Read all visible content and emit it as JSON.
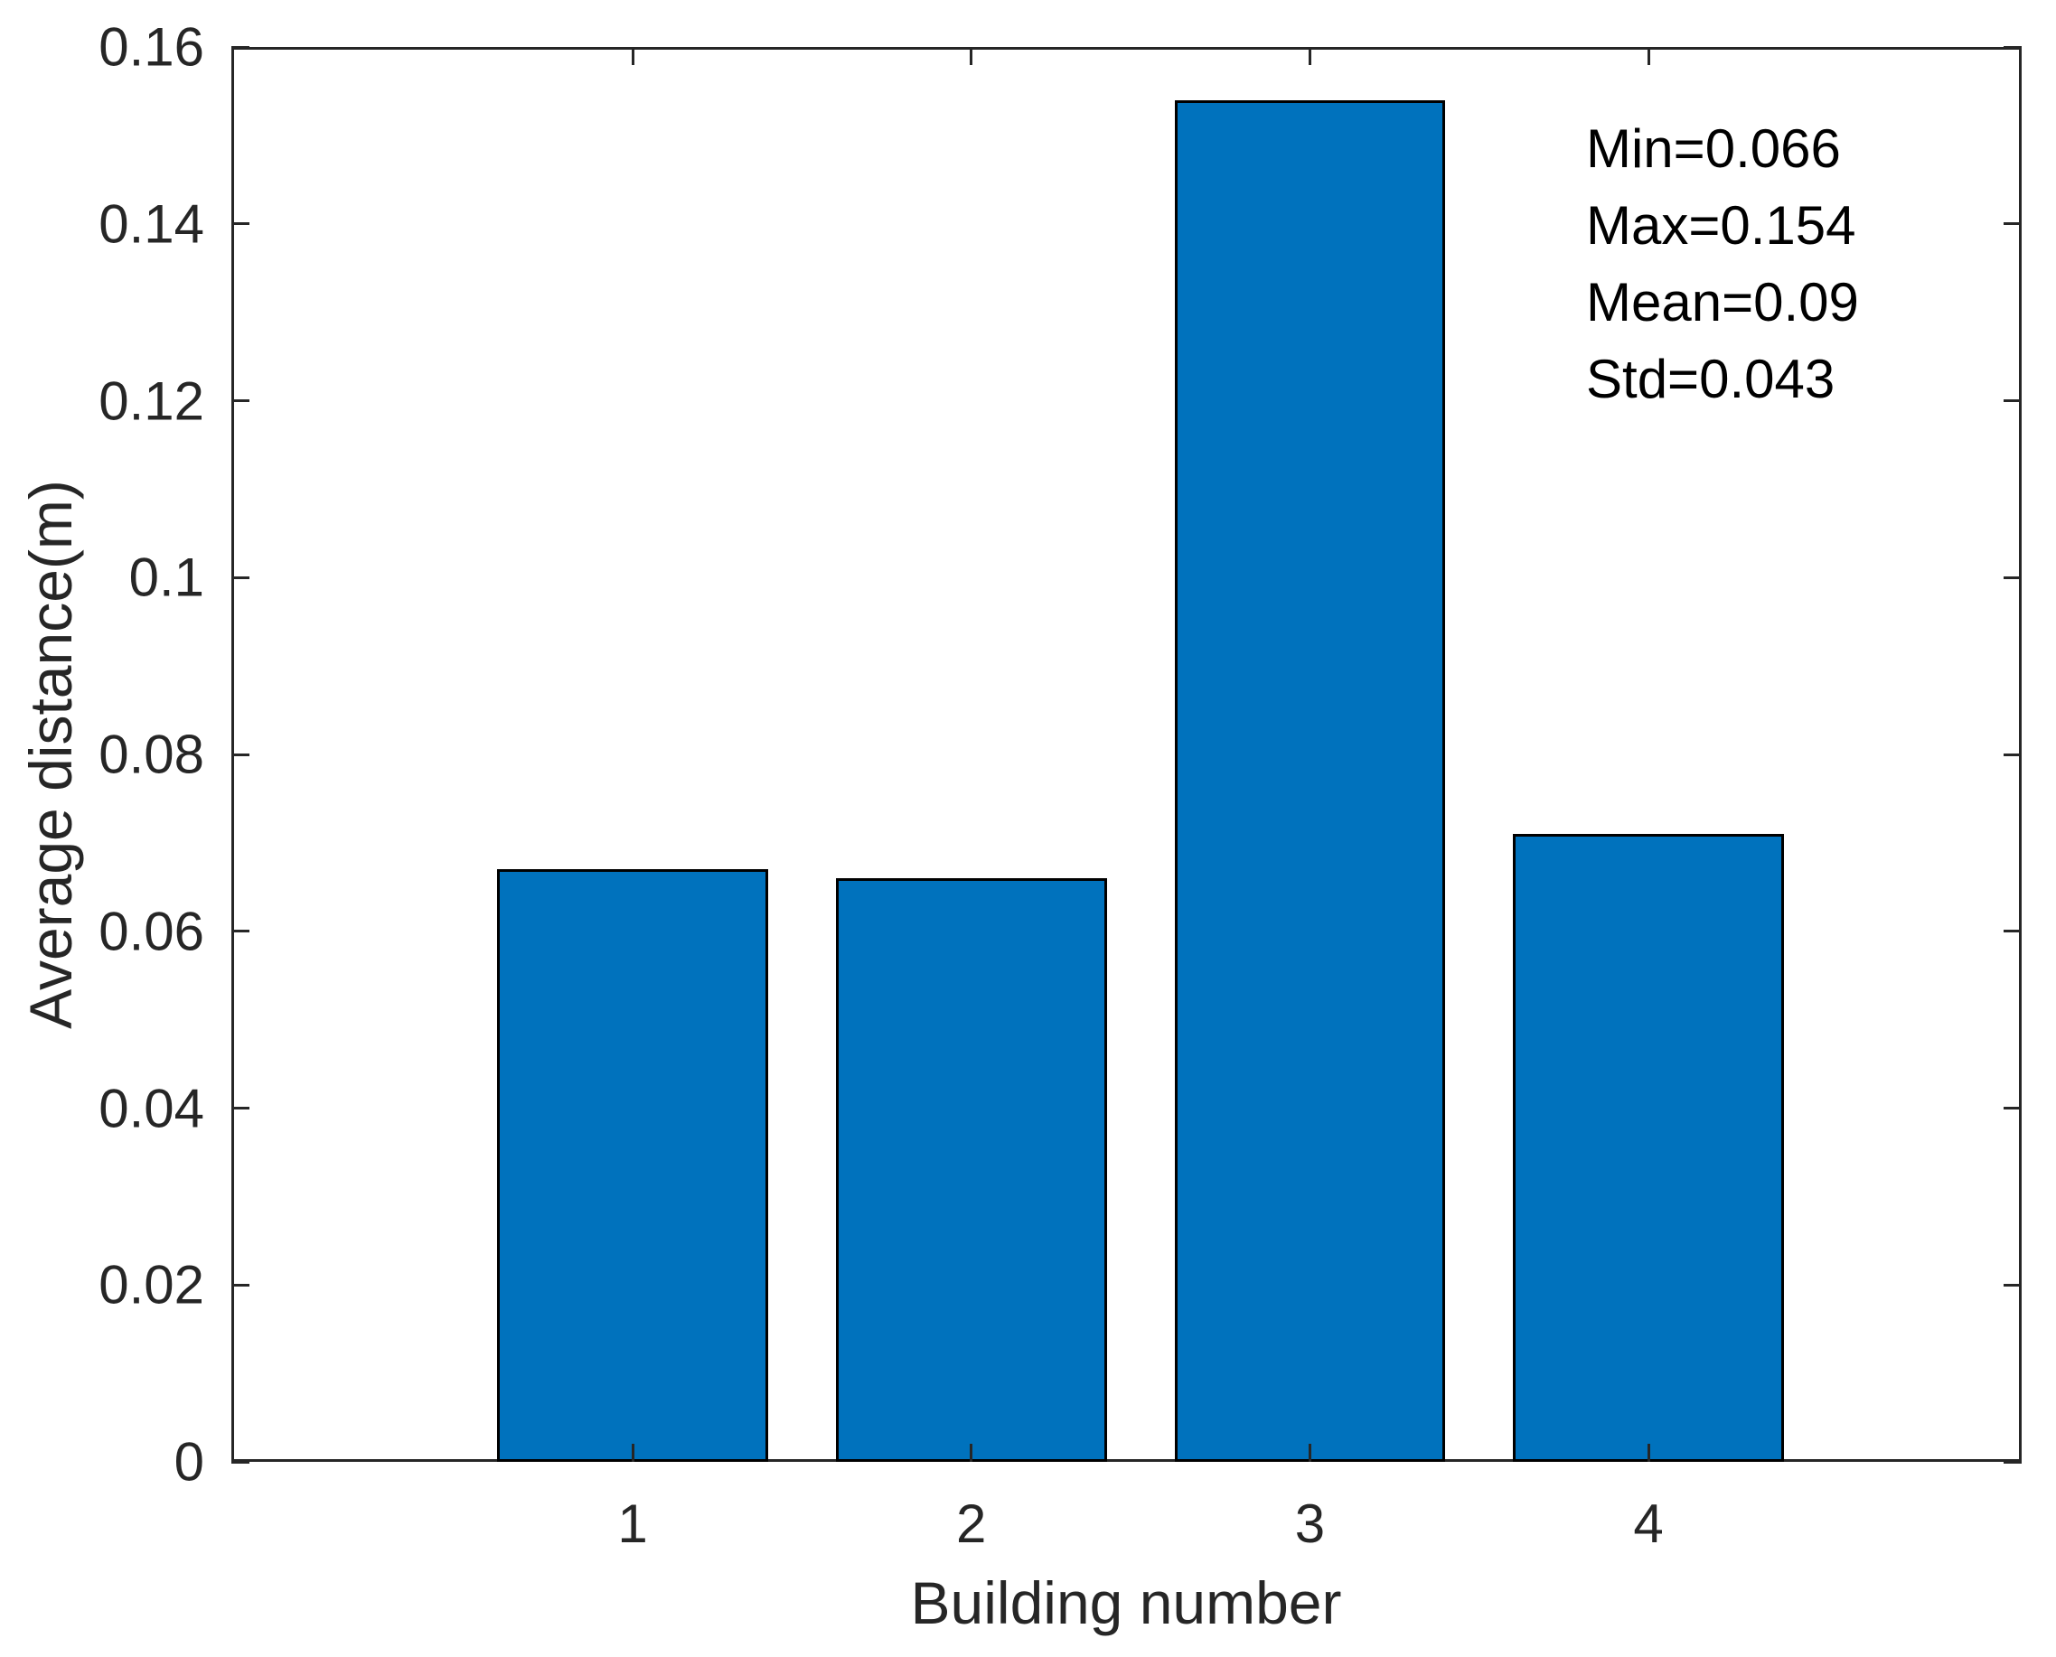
{
  "chart_data": {
    "type": "bar",
    "title": "",
    "xlabel": "Building number",
    "ylabel": "Average distance(m)",
    "categories": [
      "1",
      "2",
      "3",
      "4"
    ],
    "x": [
      1,
      2,
      3,
      4
    ],
    "values": [
      0.067,
      0.066,
      0.154,
      0.071
    ],
    "bar_width": 0.8,
    "xlim": [
      -0.185,
      5.102
    ],
    "ylim": [
      0,
      0.16
    ],
    "ytick_values": [
      0,
      0.02,
      0.04,
      0.06,
      0.08,
      0.1,
      0.12,
      0.14,
      0.16
    ],
    "ytick_labels": [
      "0",
      "0.02",
      "0.04",
      "0.06",
      "0.08",
      "0.1",
      "0.12",
      "0.14",
      "0.16"
    ],
    "grid": false,
    "legend": null,
    "tick_direction": "in",
    "box": true,
    "bar_color": "#0072BD",
    "bar_edge_color": "#000000",
    "axis_color": "#262626",
    "annotation_lines": [
      "Min=0.066",
      "Max=0.154",
      "Mean=0.09",
      "Std=0.043"
    ]
  },
  "annotation": {
    "min": "Min=0.066",
    "max": "Max=0.154",
    "mean": "Mean=0.09",
    "std": "Std=0.043"
  }
}
